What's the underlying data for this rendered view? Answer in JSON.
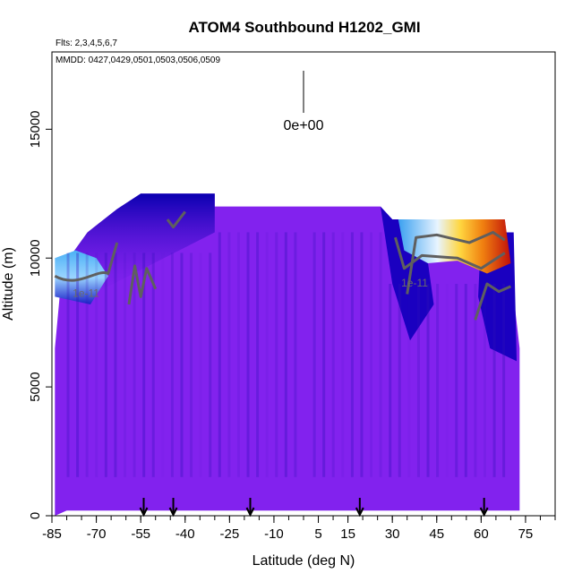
{
  "chart_data": {
    "type": "heatmap",
    "title": "ATOM4 Southbound H1202_GMI",
    "flights_note": "Flts: 2,3,4,5,6,7",
    "dates_note": "MMDD: 0427,0429,0501,0503,0506,0509",
    "xlabel": "Latitude (deg N)",
    "ylabel": "Altitude (m)",
    "xlim": [
      -85,
      85
    ],
    "ylim": [
      0,
      18000
    ],
    "x_ticks": [
      -85,
      -70,
      -55,
      -40,
      -25,
      -10,
      5,
      15,
      30,
      45,
      60,
      75
    ],
    "x_tick_labels": [
      "-85",
      "-70",
      "-55",
      "-40",
      "-25",
      "-10",
      "5",
      "15",
      "30",
      "45",
      "60",
      "75"
    ],
    "y_ticks": [
      0,
      5000,
      10000,
      15000
    ],
    "y_tick_labels": [
      "0",
      "5000",
      "10000",
      "15000"
    ],
    "color_legend_value": "0e+00",
    "contour_labels": [
      "1e-11",
      "1e-11"
    ],
    "marker_latitudes": [
      -54,
      -44,
      -18,
      19,
      61
    ],
    "colors": {
      "background_field": "#8222ee",
      "low": "#1a00c8",
      "mid": "#3a9cf0",
      "high": "#c0100a",
      "contour": "#5f5f5f"
    }
  }
}
